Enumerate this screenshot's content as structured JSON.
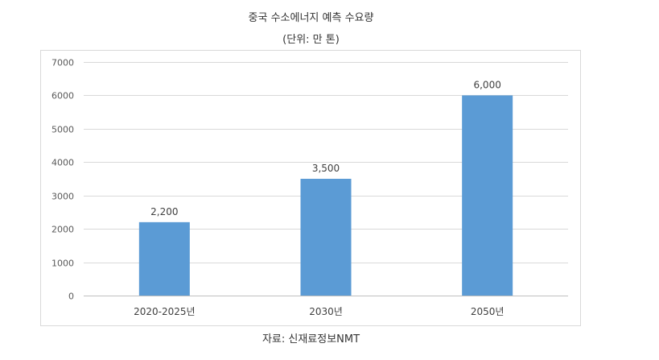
{
  "chart_data": {
    "type": "bar",
    "title": "중국 수소에너지 예측 수요량",
    "subtitle": "(단위: 만 톤)",
    "categories": [
      "2020-2025년",
      "2030년",
      "2050년"
    ],
    "series": [
      {
        "values": [
          2200,
          3500,
          6000
        ],
        "data_labels": [
          "2,200",
          "3,500",
          "6,000"
        ]
      }
    ],
    "y_ticks": [
      "0",
      "1000",
      "2000",
      "3000",
      "4000",
      "5000",
      "6000",
      "7000"
    ],
    "ylim": [
      0,
      7000
    ],
    "grid": true,
    "legend": "none",
    "bar_color": "#5b9bd5",
    "source": "자료: 신재료정보NMT"
  }
}
